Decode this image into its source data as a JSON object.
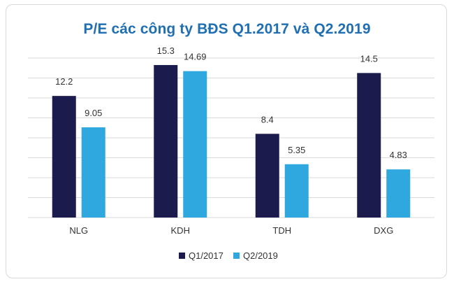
{
  "chart_data": {
    "type": "bar",
    "title": "P/E các công ty BĐS Q1.2017 và Q2.2019",
    "categories": [
      "NLG",
      "KDH",
      "TDH",
      "DXG"
    ],
    "series": [
      {
        "name": "Q1/2017",
        "values": [
          12.2,
          15.3,
          8.4,
          14.5
        ],
        "labels": [
          "12.2",
          "15.3",
          "8.4",
          "14.5"
        ],
        "color": "#1c1b4d"
      },
      {
        "name": "Q2/2019",
        "values": [
          9.05,
          14.69,
          5.35,
          4.83
        ],
        "labels": [
          "9.05",
          "14.69",
          "5.35",
          "4.83"
        ],
        "color": "#2ea8df"
      }
    ],
    "ylim": [
      0,
      16
    ],
    "grid": true,
    "legend": "bottom-center",
    "gridline_color": "#d9d9d9",
    "title_color": "#1f6fb2"
  }
}
